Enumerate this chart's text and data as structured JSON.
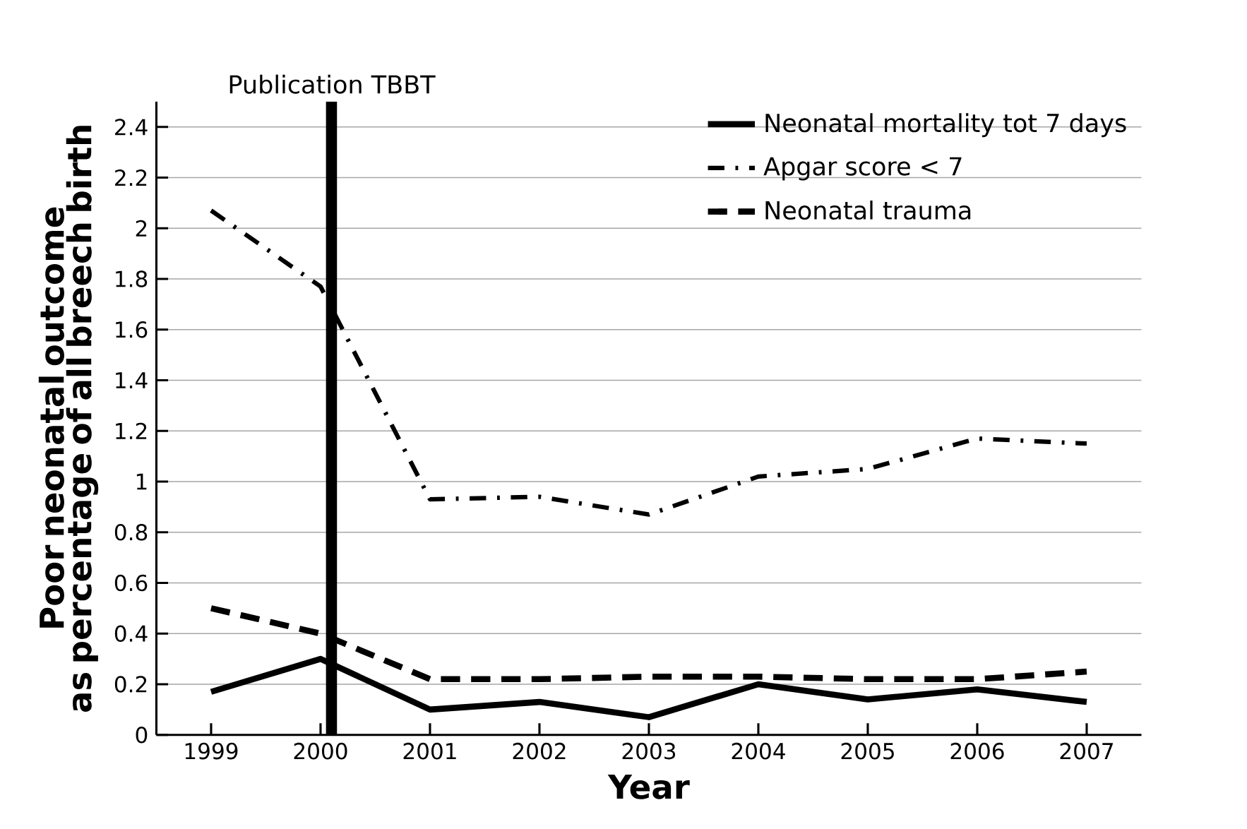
{
  "chart_data": {
    "type": "line",
    "xlabel": "Year",
    "ylabel": "Poor neonatal outcome\nas percentage of all breech birth",
    "x": [
      1999,
      2000,
      2001,
      2002,
      2003,
      2004,
      2005,
      2006,
      2007
    ],
    "series": [
      {
        "name": "Neonatal mortality tot 7 days",
        "color": "#000000",
        "line_style": "solid",
        "values": [
          0.17,
          0.3,
          0.1,
          0.13,
          0.07,
          0.2,
          0.14,
          0.18,
          0.13
        ]
      },
      {
        "name": "Apgar score < 7",
        "color": "#000000",
        "line_style": "dashdot",
        "values": [
          2.07,
          1.77,
          0.93,
          0.94,
          0.87,
          1.02,
          1.05,
          1.17,
          1.15
        ]
      },
      {
        "name": "Neonatal trauma",
        "color": "#000000",
        "line_style": "dashed",
        "values": [
          0.5,
          0.4,
          0.22,
          0.22,
          0.23,
          0.23,
          0.22,
          0.22,
          0.25
        ]
      }
    ],
    "xlim": [
      1998.5,
      2007.5
    ],
    "xticks": [
      1999,
      2000,
      2001,
      2002,
      2003,
      2004,
      2005,
      2006,
      2007
    ],
    "ylim": [
      0,
      2.5
    ],
    "yticks": [
      0,
      0.2,
      0.4,
      0.6,
      0.8,
      1,
      1.2,
      1.4,
      1.6,
      1.8,
      2,
      2.2,
      2.4
    ],
    "grid": "y",
    "legend": "top right",
    "marker": "none",
    "ref_lines": [
      {
        "axis": "x",
        "value": 2000.1,
        "label": "Publication TBBT",
        "color": "#000000"
      }
    ]
  }
}
